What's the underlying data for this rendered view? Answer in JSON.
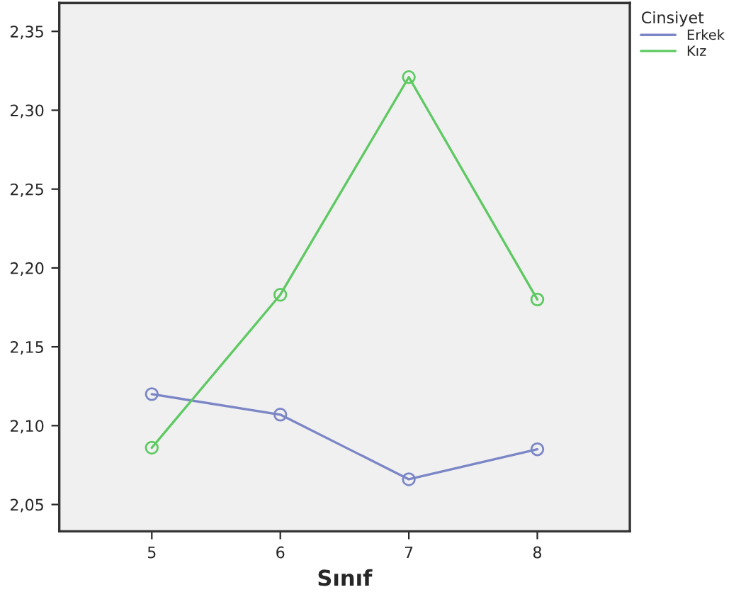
{
  "chart_data": {
    "type": "line",
    "xlabel": "Sınıf",
    "legend_title": "Cinsiyet",
    "categories": [
      "5",
      "6",
      "7",
      "8"
    ],
    "series": [
      {
        "name": "Erkek",
        "color": "#7b86c6",
        "values": [
          2.12,
          2.107,
          2.066,
          2.085
        ]
      },
      {
        "name": "Kız",
        "color": "#5ec962",
        "values": [
          2.086,
          2.183,
          2.321,
          2.18
        ]
      }
    ],
    "ylim": [
      2.033,
      2.368
    ],
    "yticks": [
      {
        "value": 2.05,
        "label": "2,05"
      },
      {
        "value": 2.1,
        "label": "2,10"
      },
      {
        "value": 2.15,
        "label": "2,15"
      },
      {
        "value": 2.2,
        "label": "2,20"
      },
      {
        "value": 2.25,
        "label": "2,25"
      },
      {
        "value": 2.3,
        "label": "2,30"
      },
      {
        "value": 2.35,
        "label": "2,35"
      }
    ],
    "marker": "circle",
    "line_style": "solid",
    "grid": false,
    "legend": "top right"
  }
}
